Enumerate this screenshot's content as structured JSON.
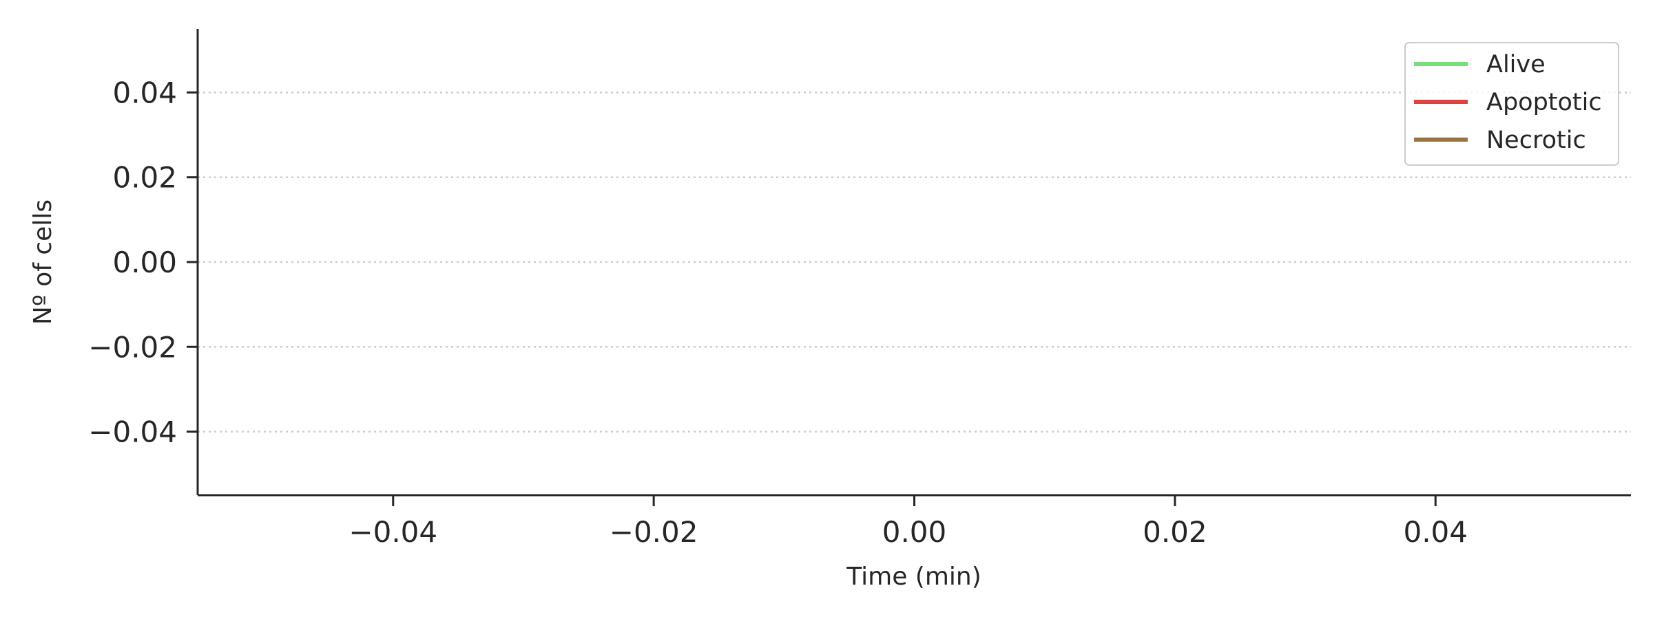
{
  "chart_data": {
    "type": "line",
    "title": "",
    "xlabel": "Time (min)",
    "ylabel": "Nº of cells",
    "xlim": [
      -0.055,
      0.055
    ],
    "ylim": [
      -0.055,
      0.055
    ],
    "x_ticks": [
      -0.04,
      -0.02,
      0.0,
      0.02,
      0.04
    ],
    "x_tick_labels": [
      "−0.04",
      "−0.02",
      "0.00",
      "0.02",
      "0.04"
    ],
    "y_ticks": [
      0.04,
      0.02,
      0.0,
      -0.02,
      -0.04
    ],
    "y_tick_labels": [
      "0.04",
      "0.02",
      "0.00",
      "−0.02",
      "−0.04"
    ],
    "grid": {
      "y": true,
      "x": false,
      "style": "dotted"
    },
    "legend_placement": "top-right",
    "series": [
      {
        "name": "Alive",
        "color": "#77dd77",
        "x": [],
        "y": []
      },
      {
        "name": "Apoptotic",
        "color": "#e04040",
        "x": [],
        "y": []
      },
      {
        "name": "Necrotic",
        "color": "#9a7440",
        "x": [],
        "y": []
      }
    ]
  }
}
